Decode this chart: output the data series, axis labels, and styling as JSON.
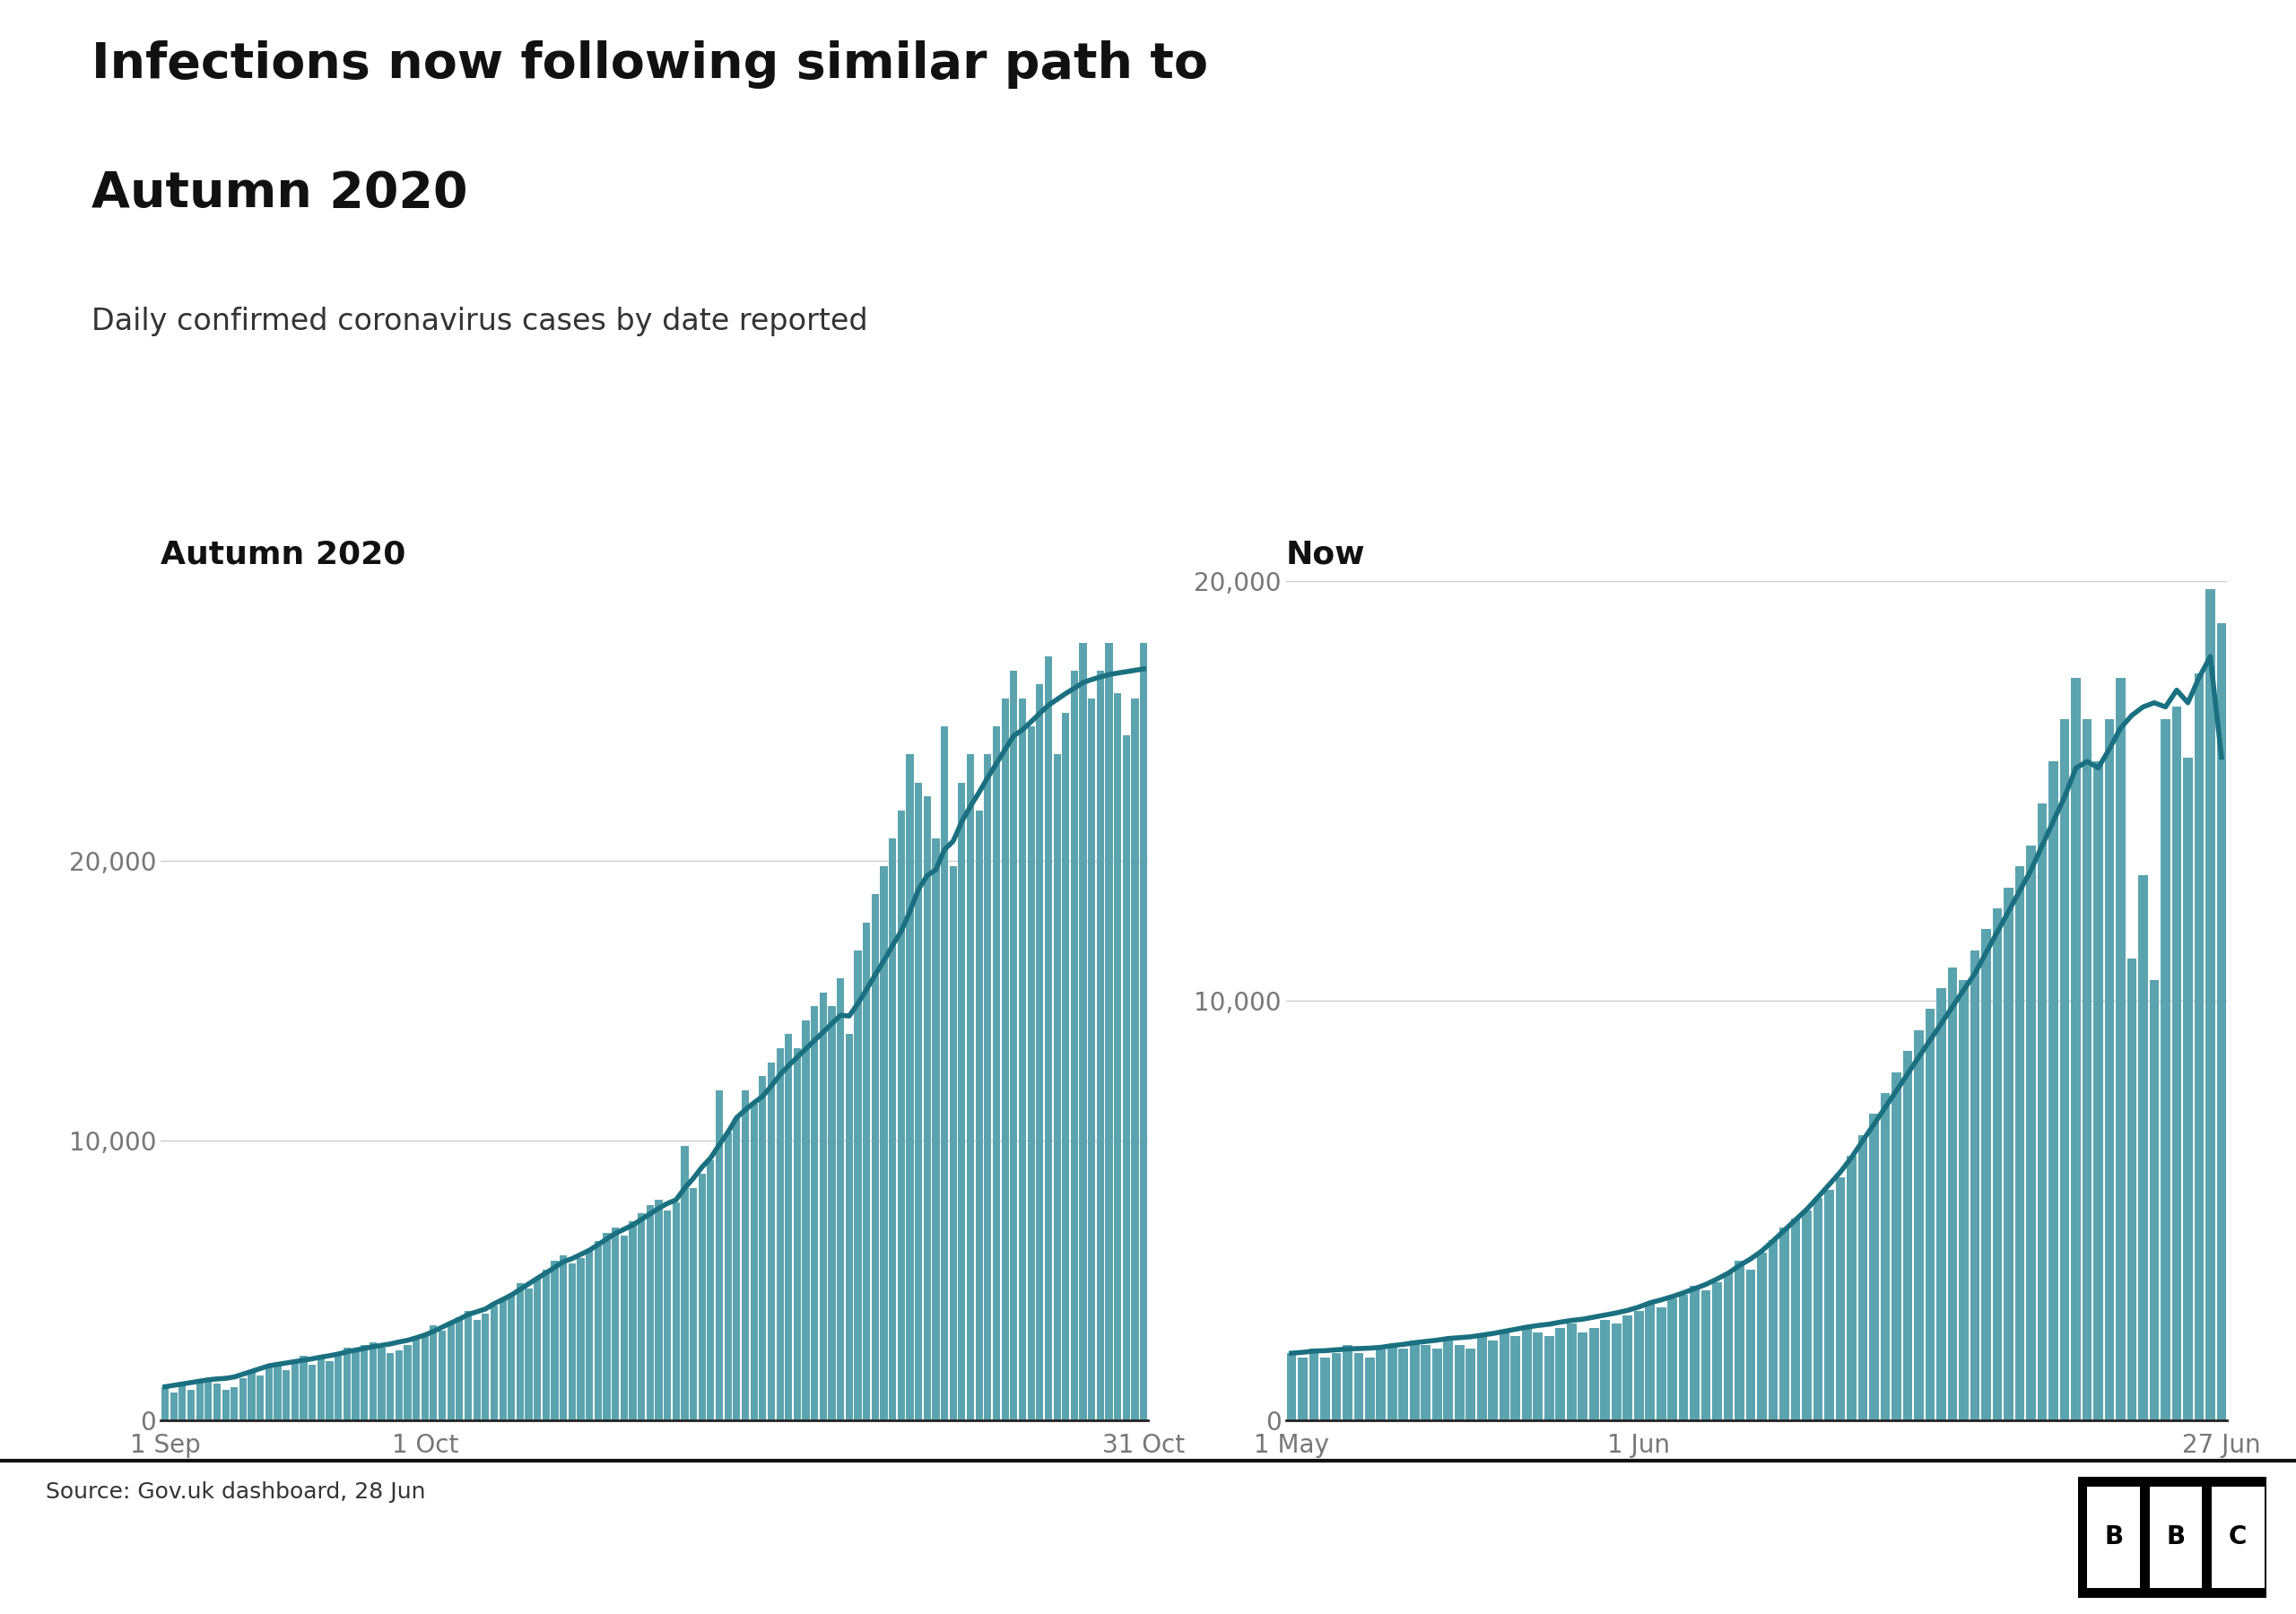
{
  "title_line1": "Infections now following similar path to",
  "title_line2": "Autumn 2020",
  "subtitle": "Daily confirmed coronavirus cases by date reported",
  "source": "Source: Gov.uk dashboard, 28 Jun",
  "left_title": "Autumn 2020",
  "right_title": "Now",
  "bar_color": "#5ba4af",
  "line_color": "#1a7080",
  "background_color": "#ffffff",
  "yticks": [
    0,
    10000,
    20000
  ],
  "ytick_labels": [
    "0",
    "10,000",
    "20,000"
  ],
  "left_xtick_labels": [
    "1 Sep",
    "1 Oct",
    "31 Oct"
  ],
  "right_xtick_labels": [
    "1 May",
    "1 Jun",
    "27 Jun"
  ],
  "autumn_bars": [
    1200,
    1000,
    1300,
    1100,
    1400,
    1500,
    1300,
    1100,
    1200,
    1500,
    1700,
    1600,
    1900,
    2000,
    1800,
    2100,
    2300,
    2000,
    2200,
    2100,
    2400,
    2600,
    2500,
    2700,
    2800,
    2600,
    2400,
    2500,
    2700,
    2900,
    3100,
    3400,
    3200,
    3500,
    3700,
    3900,
    3600,
    3800,
    4100,
    4300,
    4500,
    4900,
    4700,
    5100,
    5400,
    5700,
    5900,
    5600,
    5800,
    6100,
    6400,
    6700,
    6900,
    6600,
    7100,
    7400,
    7700,
    7900,
    7500,
    7800,
    9800,
    8300,
    8800,
    9300,
    11800,
    10300,
    10800,
    11800,
    11300,
    12300,
    12800,
    13300,
    13800,
    13300,
    14300,
    14800,
    15300,
    14800,
    15800,
    13800,
    16800,
    17800,
    18800,
    19800,
    20800,
    21800,
    23800,
    22800,
    22300,
    20800,
    24800,
    19800,
    22800,
    23800,
    21800,
    23800,
    24800,
    25800,
    26800,
    25800,
    24800,
    26300,
    27300,
    23800,
    25300,
    26800,
    27800,
    25800,
    26800,
    27800,
    26000,
    24500,
    25800,
    27800
  ],
  "autumn_line": [
    1200,
    1250,
    1300,
    1350,
    1400,
    1450,
    1480,
    1500,
    1550,
    1650,
    1750,
    1850,
    1950,
    2000,
    2050,
    2100,
    2150,
    2200,
    2260,
    2310,
    2370,
    2450,
    2510,
    2570,
    2630,
    2680,
    2730,
    2800,
    2860,
    2950,
    3050,
    3180,
    3330,
    3480,
    3620,
    3780,
    3880,
    3980,
    4170,
    4320,
    4480,
    4680,
    4880,
    5080,
    5270,
    5470,
    5670,
    5780,
    5930,
    6080,
    6280,
    6480,
    6680,
    6830,
    6980,
    7180,
    7380,
    7580,
    7750,
    7880,
    8300,
    8650,
    9050,
    9380,
    9850,
    10300,
    10820,
    11100,
    11350,
    11580,
    11950,
    12350,
    12680,
    12980,
    13280,
    13580,
    13880,
    14180,
    14480,
    14450,
    14900,
    15400,
    15920,
    16430,
    16970,
    17480,
    18180,
    18980,
    19470,
    19680,
    20400,
    20700,
    21400,
    21950,
    22450,
    22980,
    23480,
    23980,
    24470,
    24680,
    24970,
    25270,
    25560,
    25770,
    25980,
    26170,
    26370,
    26480,
    26570,
    26660,
    26710,
    26760,
    26810,
    26860
  ],
  "now_bars": [
    1600,
    1500,
    1700,
    1500,
    1600,
    1800,
    1600,
    1500,
    1700,
    1800,
    1700,
    1900,
    1800,
    1700,
    1900,
    1800,
    1700,
    2000,
    1900,
    2100,
    2000,
    2200,
    2100,
    2000,
    2200,
    2300,
    2100,
    2200,
    2400,
    2300,
    2500,
    2600,
    2800,
    2700,
    2900,
    3000,
    3200,
    3100,
    3300,
    3500,
    3800,
    3600,
    4000,
    4300,
    4600,
    4800,
    5000,
    5300,
    5500,
    5800,
    6300,
    6800,
    7300,
    7800,
    8300,
    8800,
    9300,
    9800,
    10300,
    10800,
    10500,
    11200,
    11700,
    12200,
    12700,
    13200,
    13700,
    14700,
    15700,
    16700,
    17700,
    16700,
    15700,
    16700,
    17700,
    11000,
    13000,
    10500,
    16700,
    17000,
    15800,
    17800,
    19800,
    19000
  ],
  "now_line": [
    1600,
    1620,
    1650,
    1660,
    1680,
    1700,
    1710,
    1720,
    1740,
    1780,
    1810,
    1850,
    1880,
    1910,
    1950,
    1970,
    1990,
    2030,
    2070,
    2120,
    2170,
    2220,
    2260,
    2290,
    2340,
    2380,
    2410,
    2460,
    2510,
    2560,
    2620,
    2700,
    2800,
    2870,
    2950,
    3040,
    3140,
    3240,
    3370,
    3510,
    3690,
    3850,
    4040,
    4280,
    4530,
    4780,
    5030,
    5320,
    5620,
    5920,
    6270,
    6670,
    7060,
    7460,
    7860,
    8260,
    8660,
    9060,
    9460,
    9860,
    10260,
    10650,
    11150,
    11640,
    12130,
    12620,
    13110,
    13700,
    14280,
    14860,
    15540,
    15700,
    15550,
    16000,
    16500,
    16800,
    17000,
    17100,
    17000,
    17400,
    17100,
    17700,
    18200,
    15800
  ],
  "ylim": [
    0,
    30000
  ],
  "now_ylim": [
    0,
    20000
  ],
  "title_fontsize": 40,
  "subtitle_fontsize": 24,
  "panel_title_fontsize": 26,
  "axis_fontsize": 20,
  "source_fontsize": 18
}
